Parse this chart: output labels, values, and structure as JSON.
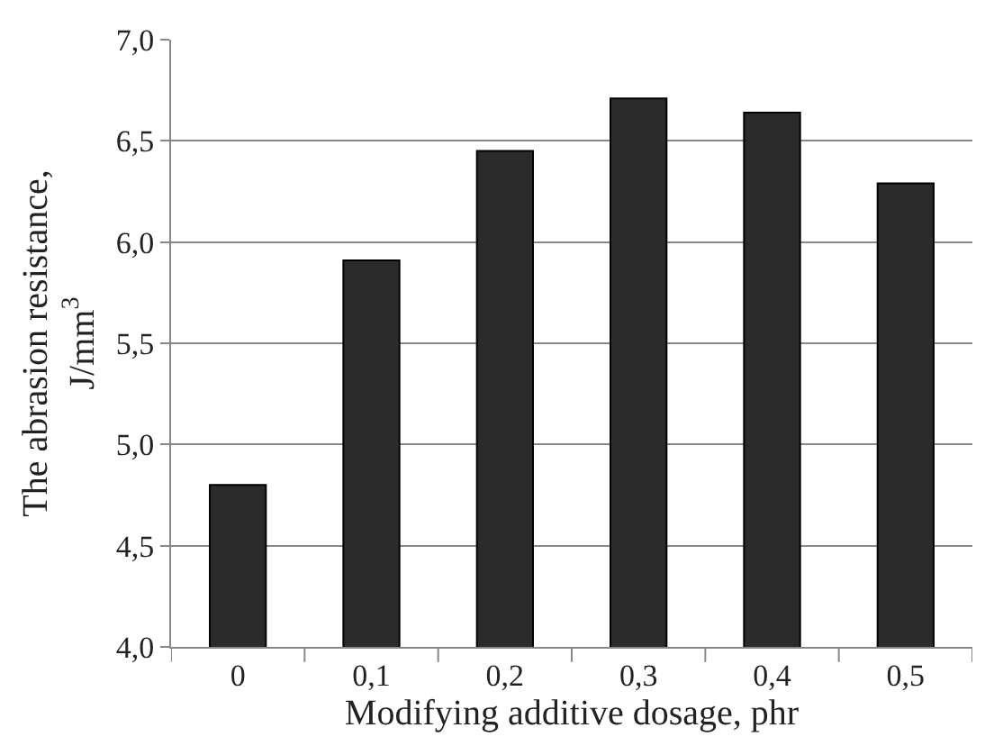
{
  "chart_data": {
    "type": "bar",
    "xlabel": "Modifying additive dosage, phr",
    "ylabel": "The abrasion resistance, J/mm$^{3}$",
    "categories": [
      "0",
      "0,1",
      "0,2",
      "0,3",
      "0,4",
      "0,5"
    ],
    "values": [
      4.8,
      5.91,
      6.45,
      6.71,
      6.64,
      6.29
    ],
    "color": "#2b2b2b",
    "ylim": [
      4.0,
      7.0
    ],
    "yticks": [
      {
        "value": 4.0,
        "label": "4,0"
      },
      {
        "value": 4.5,
        "label": "4,5"
      },
      {
        "value": 5.0,
        "label": "5,0"
      },
      {
        "value": 5.5,
        "label": "5,5"
      },
      {
        "value": 6.0,
        "label": "6,0"
      },
      {
        "value": 6.5,
        "label": "6,5"
      },
      {
        "value": 7.0,
        "label": "7,0"
      }
    ],
    "grid": "y",
    "legend": false
  }
}
